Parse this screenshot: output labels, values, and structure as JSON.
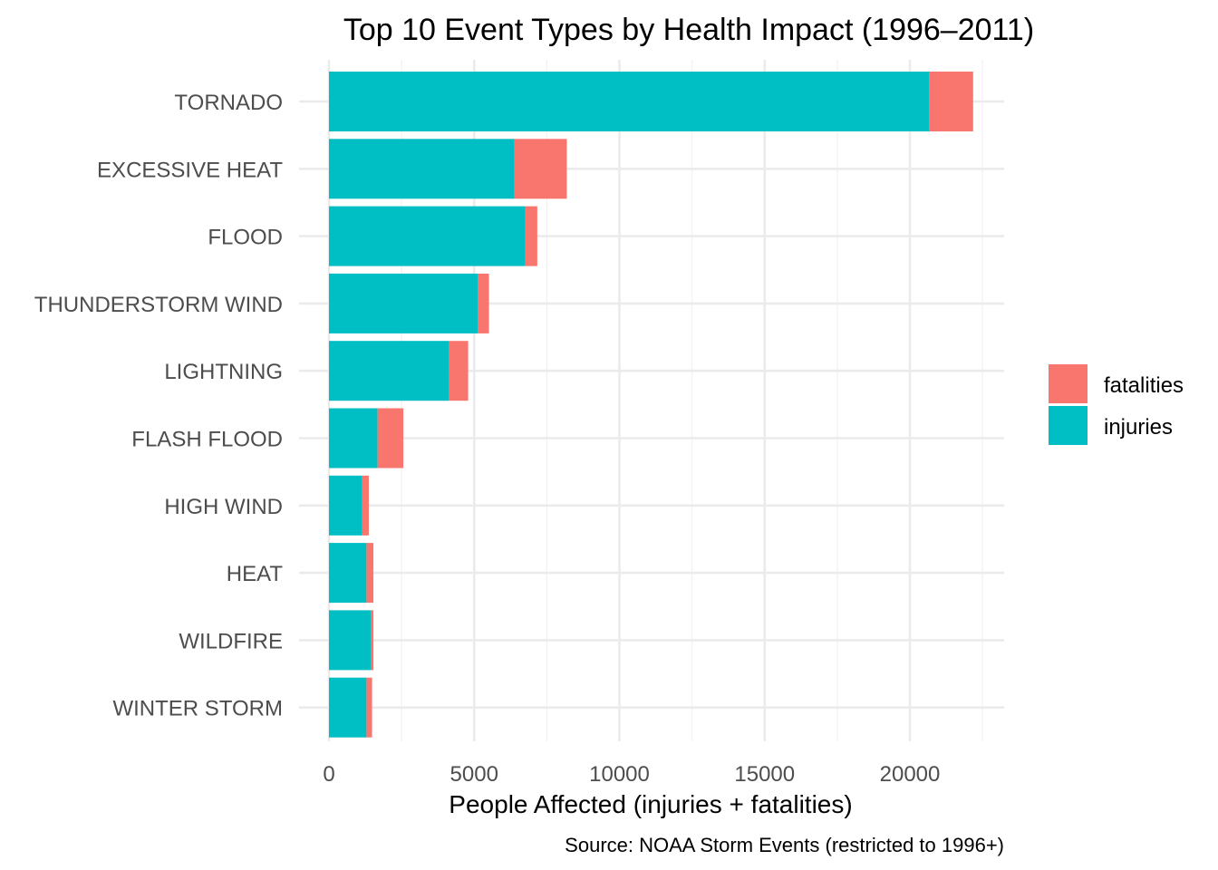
{
  "chart_data": {
    "type": "bar",
    "orientation": "horizontal",
    "stacked": true,
    "title": "Top 10 Event Types by Health Impact (1996–2011)",
    "xlabel": "People Affected (injuries + fatalities)",
    "ylabel": "",
    "caption": "Source: NOAA Storm Events (restricted to 1996+)",
    "xlim": [
      0,
      23000
    ],
    "x_ticks": [
      0,
      5000,
      10000,
      15000,
      20000
    ],
    "x_tick_labels": [
      "0",
      "5000",
      "10000",
      "15000",
      "20000"
    ],
    "categories": [
      "TORNADO",
      "EXCESSIVE HEAT",
      "FLOOD",
      "THUNDERSTORM WIND",
      "LIGHTNING",
      "FLASH FLOOD",
      "HIGH WIND",
      "HEAT",
      "WILDFIRE",
      "WINTER STORM"
    ],
    "series": [
      {
        "name": "injuries",
        "color": "#00BFC4",
        "values": [
          20667,
          6391,
          6758,
          5129,
          4141,
          1674,
          1137,
          1292,
          1456,
          1292
        ]
      },
      {
        "name": "fatalities",
        "color": "#F8766D",
        "values": [
          1511,
          1797,
          414,
          379,
          651,
          887,
          235,
          237,
          75,
          191
        ]
      }
    ],
    "legend": {
      "position": "right",
      "order": [
        "fatalities",
        "injuries"
      ]
    },
    "grid": true
  }
}
